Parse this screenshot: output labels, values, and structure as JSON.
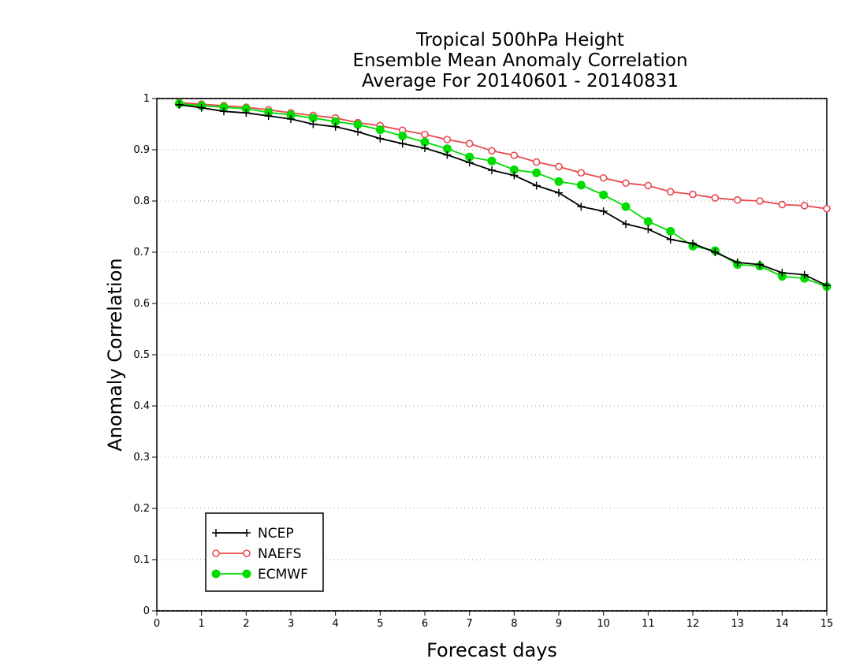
{
  "chart_data": {
    "type": "line",
    "title_lines": [
      "Tropical 500hPa Height",
      "Ensemble Mean Anomaly Correlation",
      "Average For 20140601 - 20140831"
    ],
    "xlabel": "Forecast days",
    "ylabel": "Anomaly Correlation",
    "xlim": [
      0,
      15
    ],
    "ylim": [
      0,
      1
    ],
    "x_ticks": [
      0,
      1,
      2,
      3,
      4,
      5,
      6,
      7,
      8,
      9,
      10,
      11,
      12,
      13,
      14,
      15
    ],
    "x_tick_labels": [
      "0",
      "1",
      "2",
      "3",
      "4",
      "5",
      "6",
      "7",
      "8",
      "9",
      "10",
      "11",
      "12",
      "13",
      "14",
      "15"
    ],
    "y_ticks": [
      0,
      0.1,
      0.2,
      0.3,
      0.4,
      0.5,
      0.6,
      0.7,
      0.8,
      0.9,
      1
    ],
    "y_tick_labels": [
      "0",
      "0.1",
      "0.2",
      "0.3",
      "0.4",
      "0.5",
      "0.6",
      "0.7",
      "0.8",
      "0.9",
      "1"
    ],
    "grid": "horizontal dotted",
    "legend_position": "bottom-left",
    "x": [
      0.5,
      1,
      1.5,
      2,
      2.5,
      3,
      3.5,
      4,
      4.5,
      5,
      5.5,
      6,
      6.5,
      7,
      7.5,
      8,
      8.5,
      9,
      9.5,
      10,
      10.5,
      11,
      11.5,
      12,
      12.5,
      13,
      13.5,
      14,
      14.5,
      15
    ],
    "series": [
      {
        "name": "NCEP",
        "color": "#000000",
        "marker": "plus",
        "values": [
          0.988,
          0.982,
          0.975,
          0.972,
          0.966,
          0.96,
          0.95,
          0.945,
          0.935,
          0.922,
          0.912,
          0.903,
          0.89,
          0.875,
          0.86,
          0.85,
          0.83,
          0.816,
          0.789,
          0.78,
          0.755,
          0.745,
          0.725,
          0.717,
          0.7,
          0.68,
          0.676,
          0.66,
          0.656,
          0.635
        ]
      },
      {
        "name": "NAEFS",
        "color": "#e8484e",
        "marker": "open-circle",
        "values": [
          0.992,
          0.989,
          0.986,
          0.983,
          0.978,
          0.972,
          0.967,
          0.962,
          0.953,
          0.947,
          0.938,
          0.93,
          0.92,
          0.912,
          0.898,
          0.889,
          0.876,
          0.867,
          0.855,
          0.845,
          0.835,
          0.83,
          0.818,
          0.813,
          0.806,
          0.802,
          0.8,
          0.793,
          0.791,
          0.785
        ]
      },
      {
        "name": "ECMWF",
        "color": "#00dc00",
        "marker": "filled-circle",
        "values": [
          0.99,
          0.986,
          0.983,
          0.98,
          0.973,
          0.968,
          0.962,
          0.955,
          0.949,
          0.939,
          0.927,
          0.915,
          0.902,
          0.886,
          0.878,
          0.861,
          0.855,
          0.838,
          0.831,
          0.812,
          0.789,
          0.76,
          0.741,
          0.712,
          0.703,
          0.676,
          0.673,
          0.653,
          0.649,
          0.633
        ]
      }
    ]
  }
}
